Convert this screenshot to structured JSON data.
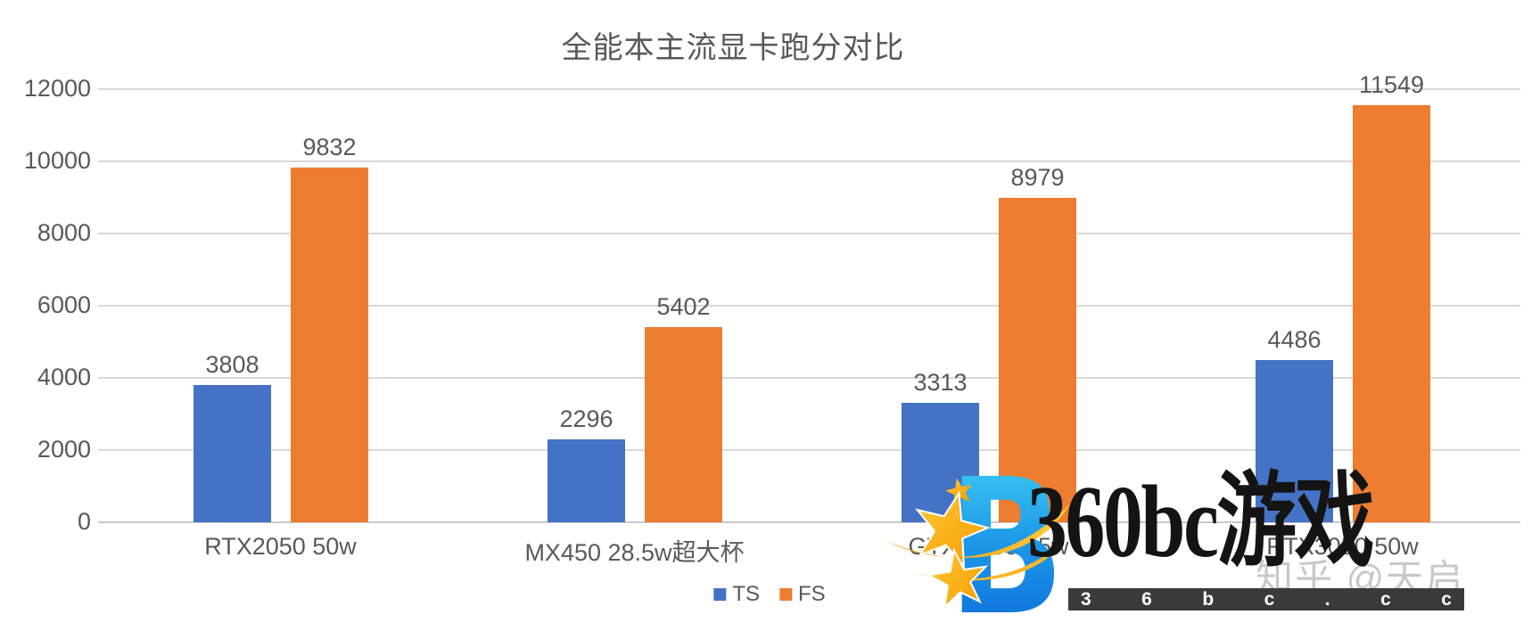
{
  "title": "全能本主流显卡跑分对比",
  "chart_data": {
    "type": "bar",
    "title": "全能本主流显卡跑分对比",
    "categories": [
      "RTX2050 50w",
      "MX450 28.5w超大杯",
      "GTX 1650 55w",
      "RTX3050 50w"
    ],
    "series": [
      {
        "name": "TS",
        "color": "#4472C4",
        "values": [
          3808,
          2296,
          3313,
          4486
        ]
      },
      {
        "name": "FS",
        "color": "#ED7D31",
        "values": [
          9832,
          5402,
          8979,
          11549
        ]
      }
    ],
    "xlabel": "",
    "ylabel": "",
    "ylim": [
      0,
      12000
    ],
    "y_ticks": [
      0,
      2000,
      4000,
      6000,
      8000,
      10000,
      12000
    ],
    "grid": true,
    "data_labels": true,
    "legend_position": "bottom"
  },
  "legend": {
    "items": [
      {
        "label": "TS",
        "color": "#4472C4"
      },
      {
        "label": "FS",
        "color": "#ED7D31"
      }
    ]
  },
  "watermarks": {
    "zhihu": "知乎 @天启",
    "brand_text": "360bc游戏",
    "domain_strip": "36bc.cc",
    "logo_icon": "stylized-blue-b-with-gold-stars-and-swoosh"
  },
  "colors": {
    "series_ts": "#4472C4",
    "series_fs": "#ED7D31",
    "gridline": "#d9d9d9",
    "axis_text": "#595959",
    "strip_background": "#3a3a3a",
    "strip_text": "#ffffff",
    "brand_text": "#141414",
    "logo_blue_top": "#45d4f7",
    "logo_blue_bottom": "#0b63d8",
    "logo_gold": "#ffb10e"
  }
}
